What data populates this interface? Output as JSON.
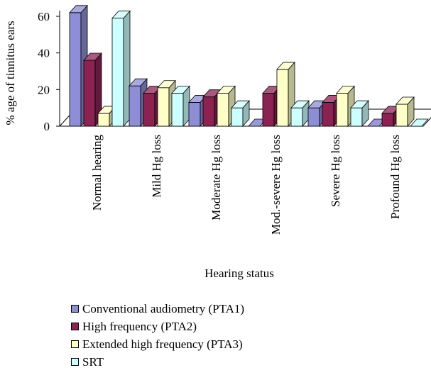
{
  "chart_data": {
    "type": "bar",
    "title": "",
    "xlabel": "Hearing status",
    "ylabel": "% age of tinnitus ears",
    "ylim": [
      0,
      60
    ],
    "yticks": [
      0,
      20,
      40,
      60
    ],
    "grid": false,
    "legend_position": "bottom",
    "categories": [
      "Normal hearing",
      "Mild Hg loss",
      "Moderate Hg loss",
      "Mod.-severe Hg loss",
      "Severe Hg loss",
      "Profound Hg loss"
    ],
    "series": [
      {
        "name": "Conventional audiometry (PTA1)",
        "color": "#8e8ed6",
        "values": [
          62,
          22,
          13,
          0,
          10,
          0
        ]
      },
      {
        "name": "High frequency (PTA2)",
        "color": "#8b2252",
        "values": [
          36,
          18,
          16,
          18,
          13,
          7
        ]
      },
      {
        "name": "Extended high frequency (PTA3)",
        "color": "#ffffc8",
        "values": [
          7,
          21,
          18,
          31,
          18,
          12
        ]
      },
      {
        "name": "SRT",
        "color": "#ccffff",
        "values": [
          59,
          18,
          10,
          10,
          10,
          0
        ]
      }
    ]
  }
}
